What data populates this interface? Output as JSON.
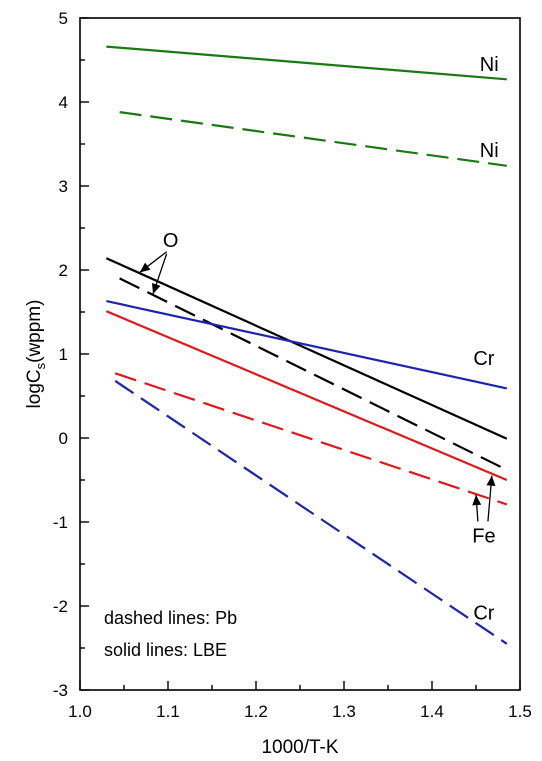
{
  "chart_data": {
    "type": "line",
    "xlabel": "1000/T-K",
    "ylabel_main": "logC",
    "ylabel_sub": "s",
    "ylabel_tail": "(wppm)",
    "xlim": [
      1.0,
      1.5
    ],
    "ylim": [
      -3,
      5
    ],
    "xticks": [
      "1.0",
      "1.1",
      "1.2",
      "1.3",
      "1.4",
      "1.5"
    ],
    "yticks": [
      "-3",
      "-2",
      "-1",
      "0",
      "1",
      "2",
      "3",
      "4",
      "5"
    ],
    "grid": false,
    "series": [
      {
        "element": "Ni",
        "medium": "LBE",
        "style": "solid",
        "color": "#1a7a12",
        "x": [
          1.03,
          1.485
        ],
        "y": [
          4.66,
          4.27
        ]
      },
      {
        "element": "Ni",
        "medium": "Pb",
        "style": "dashed",
        "color": "#1a7a12",
        "x": [
          1.045,
          1.485
        ],
        "y": [
          3.88,
          3.24
        ]
      },
      {
        "element": "O",
        "medium": "LBE",
        "style": "solid",
        "color": "#000000",
        "x": [
          1.03,
          1.485
        ],
        "y": [
          2.14,
          -0.01
        ]
      },
      {
        "element": "O",
        "medium": "Pb",
        "style": "dashed",
        "color": "#000000",
        "x": [
          1.045,
          1.485
        ],
        "y": [
          1.9,
          -0.38
        ]
      },
      {
        "element": "Cr",
        "medium": "LBE",
        "style": "solid",
        "color": "#1c24b0",
        "x": [
          1.03,
          1.485
        ],
        "y": [
          1.63,
          0.59
        ]
      },
      {
        "element": "Fe",
        "medium": "LBE",
        "style": "solid",
        "color": "#e0181a",
        "x": [
          1.03,
          1.485
        ],
        "y": [
          1.51,
          -0.5
        ]
      },
      {
        "element": "Fe",
        "medium": "Pb",
        "style": "dashed",
        "color": "#e0181a",
        "x": [
          1.04,
          1.485
        ],
        "y": [
          0.77,
          -0.79
        ]
      },
      {
        "element": "Cr",
        "medium": "Pb",
        "style": "dashed",
        "color": "#1c24b0",
        "x": [
          1.04,
          1.485
        ],
        "y": [
          0.68,
          -2.45
        ]
      }
    ],
    "annotations": [
      {
        "text": "Ni",
        "x": 1.465,
        "y": 4.45
      },
      {
        "text": "Ni",
        "x": 1.465,
        "y": 3.43
      },
      {
        "text": "O",
        "x": 1.103,
        "y": 2.36
      },
      {
        "text": "Cr",
        "x": 1.459,
        "y": 0.95
      },
      {
        "text": "Fe",
        "x": 1.459,
        "y": -1.16
      },
      {
        "text": "Cr",
        "x": 1.459,
        "y": -2.08
      }
    ],
    "legend_note": [
      "dashed lines: Pb",
      "solid lines: LBE"
    ]
  }
}
